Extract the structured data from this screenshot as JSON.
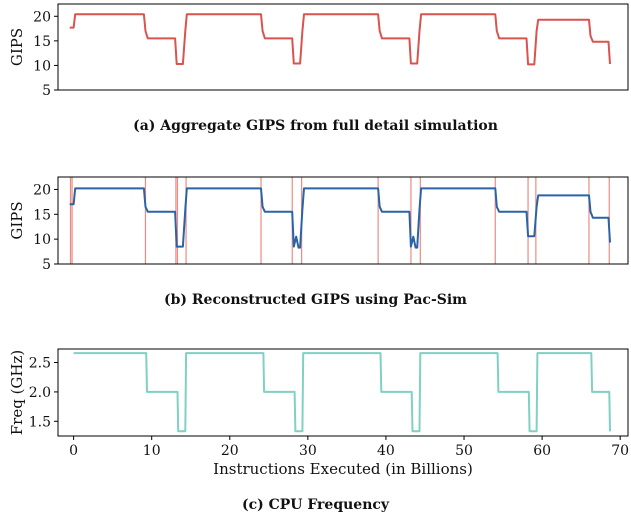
{
  "captions": {
    "a": "(a) Aggregate GIPS from full detail simulation",
    "b": "(b) Reconstructed GIPS using Pac-Sim",
    "c": "(c) CPU Frequency"
  },
  "chart_data": [
    {
      "type": "line",
      "panel": "a",
      "title": "",
      "xlabel": "",
      "ylabel": "GIPS",
      "xlim": [
        -2,
        71
      ],
      "ylim": [
        5,
        22.5
      ],
      "yticks": [
        5,
        10,
        15,
        20
      ],
      "color": "#d9534f",
      "series": [
        {
          "x": [
            -0.5,
            0,
            0.2,
            9,
            9.2,
            9.5,
            13,
            13.2,
            14,
            14.3,
            14.5,
            24,
            24.2,
            24.5,
            28,
            28.2,
            29,
            29.3,
            29.5,
            39,
            39.2,
            39.5,
            43,
            43.2,
            44,
            44.3,
            44.5,
            54,
            54.2,
            54.5,
            58,
            58.2,
            59,
            59.3,
            59.5,
            66,
            66.2,
            66.5,
            68.5,
            68.7
          ],
          "values": [
            17.7,
            17.7,
            20.4,
            20.4,
            17,
            15.5,
            15.5,
            10.3,
            10.3,
            17,
            20.4,
            20.4,
            17,
            15.5,
            15.5,
            10.4,
            10.4,
            17,
            20.4,
            20.4,
            17,
            15.5,
            15.5,
            10.4,
            10.4,
            17,
            20.4,
            20.4,
            17,
            15.5,
            15.5,
            10.2,
            10.2,
            17,
            19.3,
            19.3,
            16,
            14.8,
            14.8,
            10.3
          ]
        }
      ]
    },
    {
      "type": "line",
      "panel": "b",
      "title": "",
      "xlabel": "",
      "ylabel": "GIPS",
      "xlim": [
        -2,
        71
      ],
      "ylim": [
        5,
        22.5
      ],
      "yticks": [
        5,
        10,
        15,
        20
      ],
      "color": "#2a63a6",
      "marker_lines": [
        -0.4,
        -0.2,
        9.2,
        13.1,
        13.3,
        14.4,
        24,
        28,
        29.2,
        39,
        43.2,
        44.4,
        54,
        58.2,
        59.2,
        66,
        68.6
      ],
      "marker_color": "#e8776f",
      "series": [
        {
          "x": [
            -0.5,
            0,
            0.2,
            9,
            9.2,
            9.5,
            13,
            13.2,
            14,
            14.3,
            14.5,
            24,
            24.2,
            24.5,
            28,
            28.2,
            28.5,
            28.8,
            29,
            29.3,
            29.5,
            39,
            39.2,
            39.5,
            43,
            43.2,
            43.5,
            43.8,
            44,
            44.3,
            44.5,
            54,
            54.2,
            54.5,
            58,
            58.2,
            59,
            59.3,
            59.5,
            66,
            66.2,
            66.5,
            68.5,
            68.7
          ],
          "values": [
            17,
            17,
            20.2,
            20.2,
            16.5,
            15.5,
            15.5,
            8.5,
            8.5,
            16,
            20.2,
            20.2,
            16.5,
            15.5,
            15.5,
            8.5,
            10.5,
            8.3,
            8.3,
            16,
            20.2,
            20.2,
            16.5,
            15.5,
            15.5,
            8.5,
            10.5,
            8.3,
            8.3,
            16,
            20.2,
            20.2,
            16.5,
            15.5,
            15.5,
            10.6,
            10.6,
            16.5,
            18.8,
            18.8,
            15.5,
            14.3,
            14.3,
            9.3
          ]
        }
      ]
    },
    {
      "type": "line",
      "panel": "c",
      "title": "",
      "xlabel": "Instructions Executed (in Billions)",
      "ylabel": "Freq (GHz)",
      "xlim": [
        -2,
        71
      ],
      "ylim": [
        1.25,
        2.73
      ],
      "yticks": [
        1.5,
        2.0,
        2.5
      ],
      "ytick_labels": [
        "1.5",
        "2.0",
        "2.5"
      ],
      "xticks": [
        0,
        10,
        20,
        30,
        40,
        50,
        60,
        70
      ],
      "color": "#7fd1c3",
      "series": [
        {
          "x": [
            0,
            9.3,
            9.4,
            13.3,
            13.4,
            14.3,
            14.4,
            24.3,
            24.4,
            28.3,
            28.4,
            29.3,
            29.4,
            39.3,
            39.4,
            43.3,
            43.4,
            44.3,
            44.4,
            54.3,
            54.4,
            58.3,
            58.4,
            59.3,
            59.4,
            66.3,
            66.4,
            68.6,
            68.7
          ],
          "values": [
            2.66,
            2.66,
            2.0,
            2.0,
            1.33,
            1.33,
            2.66,
            2.66,
            2.0,
            2.0,
            1.33,
            1.33,
            2.66,
            2.66,
            2.0,
            2.0,
            1.33,
            1.33,
            2.66,
            2.66,
            2.0,
            2.0,
            1.33,
            1.33,
            2.66,
            2.66,
            2.0,
            2.0,
            1.33
          ]
        }
      ]
    }
  ]
}
